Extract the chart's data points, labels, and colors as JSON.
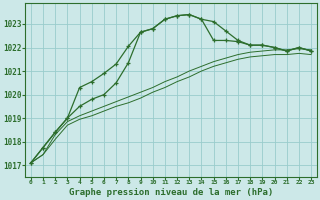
{
  "title": "Graphe pression niveau de la mer (hPa)",
  "background_color": "#cce8e8",
  "grid_color": "#99cccc",
  "line_color": "#2d6e2d",
  "xlim": [
    -0.5,
    23.5
  ],
  "ylim": [
    1016.5,
    1023.9
  ],
  "yticks": [
    1017,
    1018,
    1019,
    1020,
    1021,
    1022,
    1023
  ],
  "xticks": [
    0,
    1,
    2,
    3,
    4,
    5,
    6,
    7,
    8,
    9,
    10,
    11,
    12,
    13,
    14,
    15,
    16,
    17,
    18,
    19,
    20,
    21,
    22,
    23
  ],
  "series_marked": [
    [
      1017.1,
      1017.75,
      1018.4,
      1019.0,
      1020.3,
      1020.55,
      1020.9,
      1021.3,
      1022.05,
      1022.65,
      1022.8,
      1023.2,
      1023.35,
      1023.4,
      1023.2,
      1023.1,
      1022.7,
      1022.3,
      1022.1,
      1022.1,
      1022.0,
      1021.85,
      1022.0,
      1021.85
    ],
    [
      1017.1,
      1017.75,
      1018.4,
      1019.0,
      1019.5,
      1019.8,
      1020.0,
      1020.5,
      1021.35,
      1022.65,
      1022.8,
      1023.2,
      1023.35,
      1023.4,
      1023.2,
      1022.3,
      1022.3,
      1022.25,
      1022.1,
      1022.1,
      1022.0,
      1021.85,
      1022.0,
      1021.85
    ]
  ],
  "series_plain": [
    [
      1017.1,
      1017.45,
      1018.3,
      1018.85,
      1019.1,
      1019.3,
      1019.5,
      1019.7,
      1019.9,
      1020.1,
      1020.3,
      1020.55,
      1020.75,
      1021.0,
      1021.2,
      1021.4,
      1021.55,
      1021.7,
      1021.8,
      1021.85,
      1021.9,
      1021.9,
      1021.95,
      1021.9
    ],
    [
      1017.1,
      1017.45,
      1018.1,
      1018.7,
      1018.95,
      1019.1,
      1019.3,
      1019.5,
      1019.65,
      1019.85,
      1020.1,
      1020.3,
      1020.55,
      1020.75,
      1021.0,
      1021.2,
      1021.35,
      1021.5,
      1021.6,
      1021.65,
      1021.7,
      1021.7,
      1021.75,
      1021.7
    ]
  ]
}
